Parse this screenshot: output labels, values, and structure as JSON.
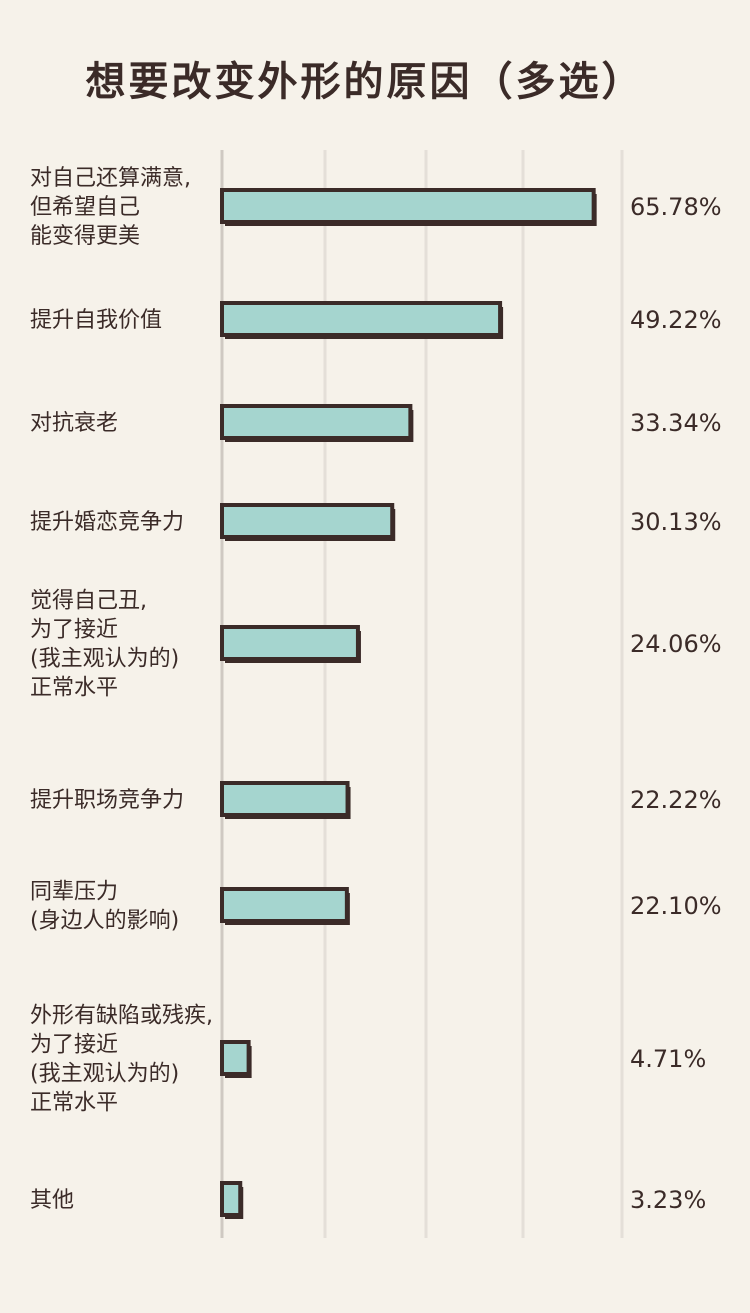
{
  "chart_data": {
    "type": "bar",
    "orientation": "horizontal",
    "title": "想要改变外形的原因（多选）",
    "categories": [
      [
        "对自己还算满意,",
        "但希望自己",
        "能变得更美"
      ],
      [
        "提升自我价值"
      ],
      [
        "对抗衰老"
      ],
      [
        "提升婚恋竞争力"
      ],
      [
        "觉得自己丑,",
        "为了接近",
        "(我主观认为的)",
        "正常水平"
      ],
      [
        "提升职场竞争力"
      ],
      [
        "同辈压力",
        "(身边人的影响)"
      ],
      [
        "外形有缺陷或残疾,",
        "为了接近",
        "(我主观认为的)",
        "正常水平"
      ],
      [
        "其他"
      ]
    ],
    "values": [
      65.78,
      49.22,
      33.34,
      30.13,
      24.06,
      22.22,
      22.1,
      4.71,
      3.23
    ],
    "value_labels": [
      "65.78%",
      "49.22%",
      "33.34%",
      "30.13%",
      "24.06%",
      "22.22%",
      "22.10%",
      "4.71%",
      "3.23%"
    ],
    "xlim": [
      0,
      70
    ],
    "grid": true,
    "bar_color": "#a5d5cf",
    "outline_color": "#3b2b28",
    "background": "#f6f2ea"
  }
}
